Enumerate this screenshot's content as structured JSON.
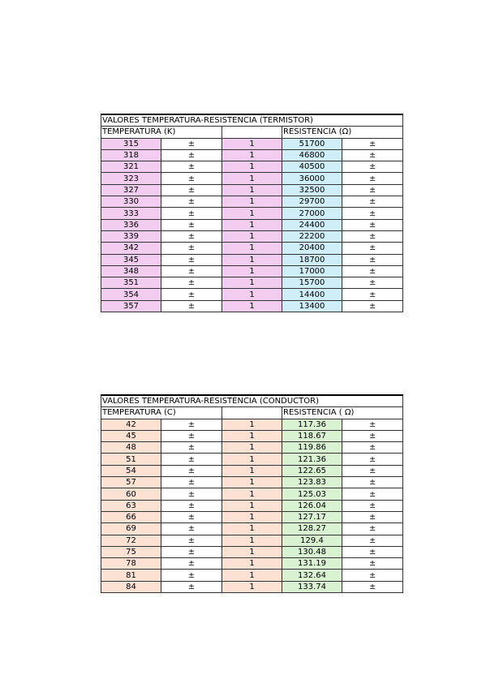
{
  "thermistor": {
    "title": "VALORES TEMPERATURA-RESISTENCIA (TERMISTOR)",
    "col_temp": "TEMPERATURA (K)",
    "col_res": "RESISTENCIA (Ω)",
    "pm": "±",
    "one": "1",
    "temperatures": [
      "315",
      "318",
      "321",
      "323",
      "327",
      "330",
      "333",
      "336",
      "339",
      "342",
      "345",
      "348",
      "351",
      "354",
      "357"
    ],
    "resistances": [
      "51700",
      "46800",
      "40500",
      "36000",
      "32500",
      "29700",
      "27000",
      "24400",
      "22200",
      "20400",
      "18700",
      "17000",
      "15700",
      "14400",
      "13400"
    ],
    "colors": {
      "temp": "#f2cdf0",
      "res": "#cfeef8"
    }
  },
  "conductor": {
    "title": "VALORES TEMPERATURA-RESISTENCIA (CONDUCTOR)",
    "col_temp": "TEMPERATURA (C)",
    "col_res": "RESISTENCIA ( Ω)",
    "pm": "±",
    "one": "1",
    "temperatures": [
      "42",
      "45",
      "48",
      "51",
      "54",
      "57",
      "60",
      "63",
      "66",
      "69",
      "72",
      "75",
      "78",
      "81",
      "84"
    ],
    "resistances": [
      "117.36",
      "118.67",
      "119.86",
      "121.36",
      "122.65",
      "123.83",
      "125.03",
      "126.04",
      "127.17",
      "128.27",
      "129.4",
      "130.48",
      "131.19",
      "132.64",
      "133.74"
    ],
    "colors": {
      "temp": "#fde2d4",
      "res": "#d8f2d2"
    }
  }
}
